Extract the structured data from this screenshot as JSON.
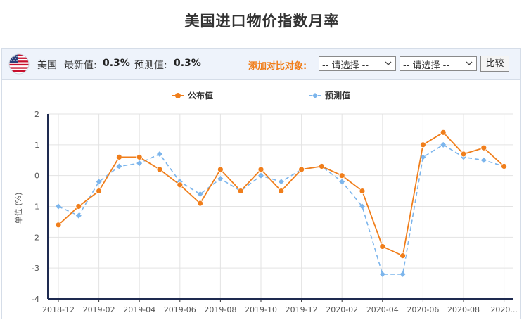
{
  "page": {
    "title": "美国进口物价指数月率"
  },
  "toolbar": {
    "country": "美国",
    "latest_label": "最新值:",
    "latest_value": "0.3%",
    "forecast_label": "预测值:",
    "forecast_value": "0.3%",
    "compare_label": "添加对比对象:",
    "select1": "-- 请选择 --",
    "select2": "-- 请选择 --",
    "compare_button": "比较",
    "flag_icon": "us-flag-icon"
  },
  "chart_data": {
    "type": "line",
    "x": [
      "2018-12",
      "2019-01",
      "2019-02",
      "2019-03",
      "2019-04",
      "2019-05",
      "2019-06",
      "2019-07",
      "2019-08",
      "2019-09",
      "2019-10",
      "2019-11",
      "2019-12",
      "2020-01",
      "2020-02",
      "2020-03",
      "2020-04",
      "2020-05",
      "2020-06",
      "2020-07",
      "2020-08",
      "2020-09",
      "2020-10"
    ],
    "x_tick_labels": [
      "2018-12",
      "2019-02",
      "2019-04",
      "2019-06",
      "2019-08",
      "2019-10",
      "2019-12",
      "2020-02",
      "2020-04",
      "2020-06",
      "2020-08",
      "2020..."
    ],
    "series": [
      {
        "name": "公布值",
        "color": "#f07e1b",
        "style": "solid",
        "marker": "circle",
        "values": [
          -1.6,
          -1.0,
          -0.5,
          0.6,
          0.6,
          0.2,
          -0.3,
          -0.9,
          0.2,
          -0.5,
          0.2,
          -0.5,
          0.2,
          0.3,
          0.0,
          -0.5,
          -2.3,
          -2.6,
          1.0,
          1.4,
          0.7,
          0.9,
          0.3
        ]
      },
      {
        "name": "预测值",
        "color": "#7cb5ec",
        "style": "dashed",
        "marker": "diamond",
        "values": [
          -1.0,
          -1.3,
          -0.2,
          0.3,
          0.4,
          0.7,
          -0.2,
          -0.6,
          -0.1,
          -0.5,
          0.0,
          -0.2,
          0.2,
          0.3,
          -0.2,
          -1.0,
          -3.2,
          -3.2,
          0.6,
          1.0,
          0.6,
          0.5,
          0.3
        ]
      }
    ],
    "ylabel": "单位:(%)",
    "ylim": [
      -4,
      2
    ],
    "yticks": [
      2,
      1,
      0,
      -1,
      -2,
      -3,
      -4
    ],
    "grid": true,
    "legend_position": "top-center"
  }
}
